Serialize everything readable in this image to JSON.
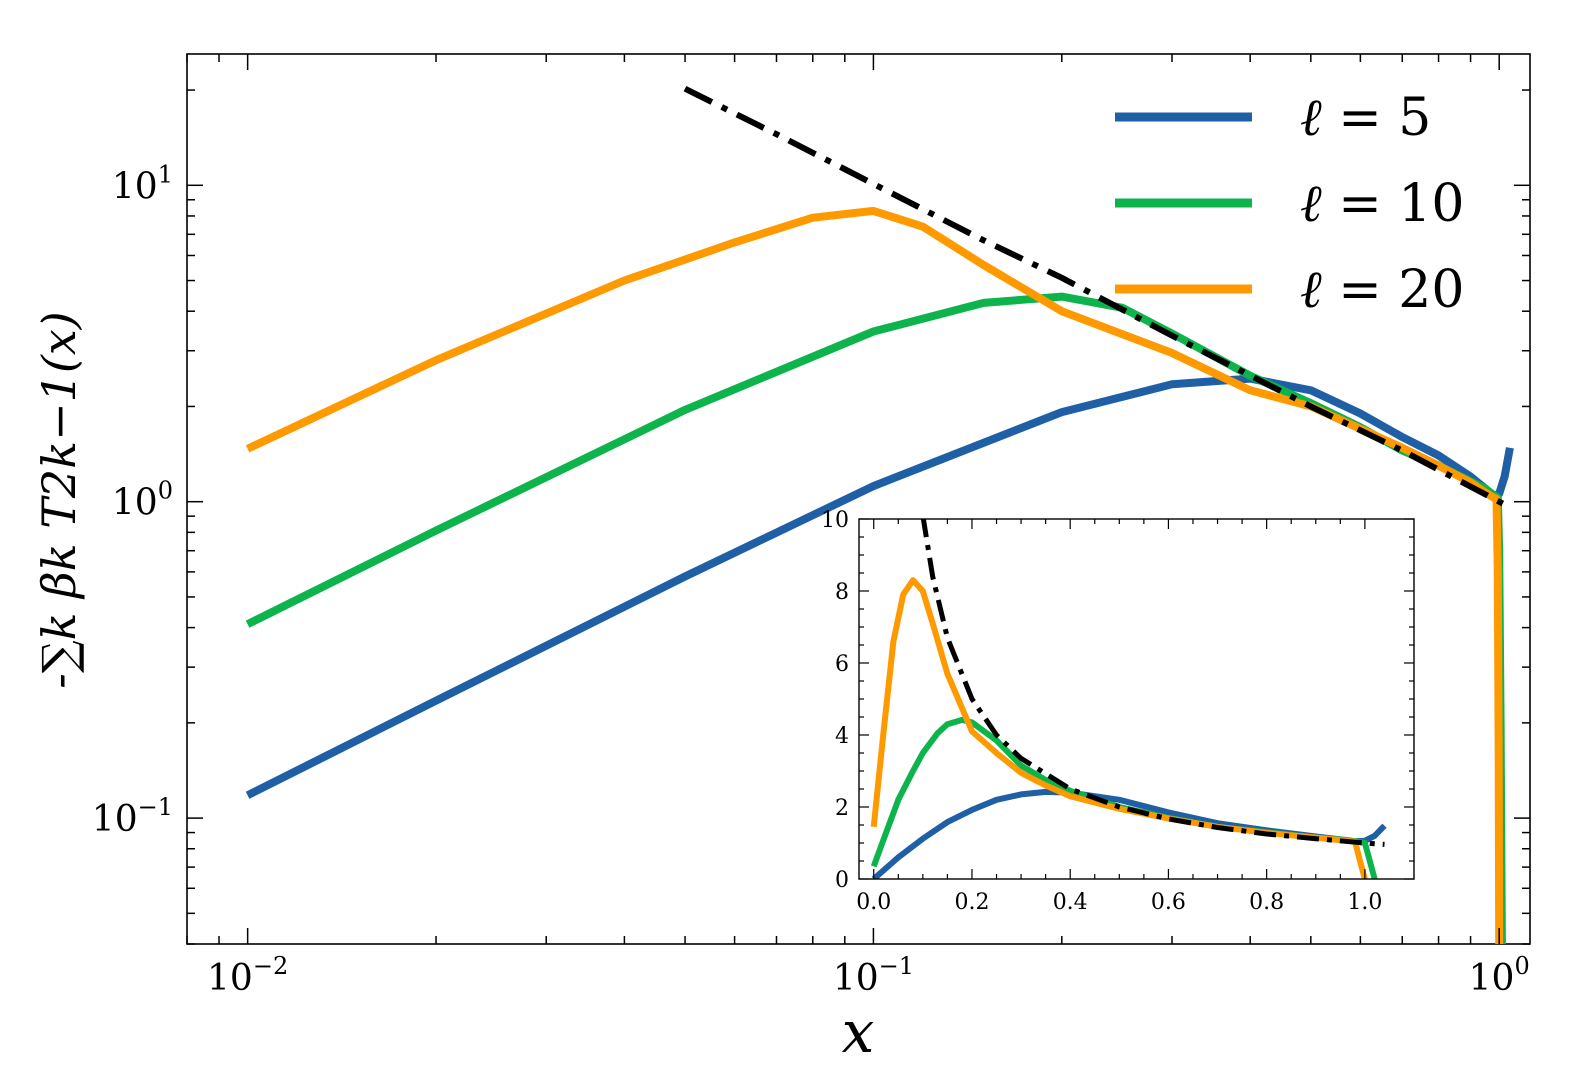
{
  "chart_data": [
    {
      "id": "main",
      "type": "line",
      "title": "",
      "xlabel": "x",
      "ylabel": "-∑k βk T2k−1(x)",
      "xscale": "log",
      "yscale": "log",
      "xlim": [
        0.008,
        1.12
      ],
      "ylim": [
        0.04,
        26
      ],
      "xticks": [
        {
          "value": 0.01,
          "base": "10",
          "exp": "−2"
        },
        {
          "value": 0.1,
          "base": "10",
          "exp": "−1"
        },
        {
          "value": 1,
          "base": "10",
          "exp": "0"
        }
      ],
      "yticks": [
        {
          "value": 0.1,
          "base": "10",
          "exp": "−1"
        },
        {
          "value": 1,
          "base": "10",
          "exp": "0"
        },
        {
          "value": 10,
          "base": "10",
          "exp": "1"
        }
      ],
      "legend": {
        "position": "top-right",
        "entries": [
          {
            "prefix": "ℓ",
            "text": " = 5",
            "color": "#1f5fa6"
          },
          {
            "prefix": "ℓ",
            "text": " = 10",
            "color": "#0db44c"
          },
          {
            "prefix": "ℓ",
            "text": " = 20",
            "color": "#ff9900"
          }
        ]
      },
      "series": [
        {
          "key": "l5",
          "color": "#1f5fa6",
          "style": "solid",
          "x": [
            0.01,
            0.02,
            0.05,
            0.1,
            0.2,
            0.3,
            0.4,
            0.5,
            0.6,
            0.7,
            0.8,
            0.9,
            0.95,
            0.98,
            1.0,
            1.02,
            1.04
          ],
          "y": [
            0.118,
            0.235,
            0.58,
            1.12,
            1.92,
            2.35,
            2.45,
            2.25,
            1.9,
            1.6,
            1.4,
            1.2,
            1.1,
            1.04,
            1.06,
            1.2,
            1.48
          ]
        },
        {
          "key": "l10",
          "color": "#0db44c",
          "style": "solid",
          "x": [
            0.01,
            0.02,
            0.05,
            0.1,
            0.15,
            0.2,
            0.25,
            0.3,
            0.4,
            0.5,
            0.6,
            0.7,
            0.8,
            0.9,
            0.95,
            0.98,
            0.995,
            1.0,
            1.005,
            1.01
          ],
          "y": [
            0.41,
            0.81,
            1.95,
            3.45,
            4.25,
            4.45,
            4.1,
            3.4,
            2.5,
            2.05,
            1.72,
            1.45,
            1.3,
            1.16,
            1.1,
            1.05,
            1.03,
            0.7,
            0.2,
            0.04
          ]
        },
        {
          "key": "l20",
          "color": "#ff9900",
          "style": "solid",
          "x": [
            0.01,
            0.02,
            0.04,
            0.06,
            0.08,
            0.1,
            0.12,
            0.15,
            0.2,
            0.3,
            0.4,
            0.5,
            0.6,
            0.7,
            0.8,
            0.9,
            0.95,
            0.98,
            0.99,
            0.995,
            0.998,
            1.0
          ],
          "y": [
            1.47,
            2.8,
            5.0,
            6.6,
            7.9,
            8.3,
            7.4,
            5.6,
            4.0,
            2.95,
            2.25,
            2.0,
            1.7,
            1.48,
            1.3,
            1.15,
            1.07,
            1.03,
            1.02,
            0.6,
            0.15,
            0.04
          ]
        },
        {
          "key": "asym",
          "color": "#000000",
          "style": "dashdot",
          "x": [
            0.05,
            0.07,
            0.1,
            0.12,
            0.15,
            0.2,
            0.3,
            0.5,
            0.7,
            1.0,
            1.04
          ],
          "y": [
            20.2,
            14.5,
            10.1,
            8.4,
            6.7,
            5.1,
            3.35,
            2.0,
            1.45,
            1.0,
            0.96
          ]
        }
      ]
    },
    {
      "id": "inset",
      "type": "line",
      "title": "",
      "xlabel": "",
      "ylabel": "",
      "xscale": "linear",
      "yscale": "linear",
      "xlim": [
        -0.03,
        1.1
      ],
      "ylim": [
        0,
        10
      ],
      "xticks": [
        0,
        0.2,
        0.4,
        0.6,
        0.8,
        1.0
      ],
      "xtick_labels": [
        "0.0",
        "0.2",
        "0.4",
        "0.6",
        "0.8",
        "1.0"
      ],
      "yticks": [
        0,
        2,
        4,
        6,
        8,
        10
      ],
      "ytick_labels": [
        "0",
        "2",
        "4",
        "6",
        "8",
        "10"
      ],
      "series": [
        {
          "key": "l5",
          "color": "#1f5fa6",
          "style": "solid",
          "x": [
            0.0,
            0.05,
            0.1,
            0.15,
            0.2,
            0.25,
            0.3,
            0.35,
            0.4,
            0.5,
            0.6,
            0.7,
            0.8,
            0.9,
            0.95,
            0.98,
            1.0,
            1.02,
            1.04
          ],
          "y": [
            0.0,
            0.6,
            1.12,
            1.58,
            1.92,
            2.2,
            2.35,
            2.42,
            2.4,
            2.2,
            1.85,
            1.55,
            1.35,
            1.18,
            1.1,
            1.05,
            1.06,
            1.2,
            1.48
          ]
        },
        {
          "key": "l10",
          "color": "#0db44c",
          "style": "solid",
          "x": [
            0.0,
            0.02,
            0.05,
            0.08,
            0.1,
            0.13,
            0.15,
            0.18,
            0.2,
            0.25,
            0.3,
            0.35,
            0.4,
            0.5,
            0.6,
            0.7,
            0.8,
            0.9,
            0.95,
            0.98,
            1.0,
            1.01,
            1.02
          ],
          "y": [
            0.35,
            1.1,
            2.2,
            3.0,
            3.5,
            4.05,
            4.3,
            4.42,
            4.35,
            3.85,
            3.15,
            2.75,
            2.45,
            2.0,
            1.7,
            1.45,
            1.3,
            1.15,
            1.1,
            1.05,
            1.0,
            0.5,
            0.0
          ]
        },
        {
          "key": "l20",
          "color": "#ff9900",
          "style": "solid",
          "x": [
            0.0,
            0.02,
            0.04,
            0.06,
            0.08,
            0.1,
            0.12,
            0.15,
            0.2,
            0.25,
            0.3,
            0.35,
            0.4,
            0.5,
            0.6,
            0.7,
            0.8,
            0.9,
            0.95,
            0.97,
            0.98,
            0.99,
            1.0
          ],
          "y": [
            1.45,
            4.1,
            6.6,
            7.9,
            8.3,
            8.0,
            7.1,
            5.7,
            4.1,
            3.5,
            2.95,
            2.6,
            2.3,
            1.95,
            1.68,
            1.45,
            1.28,
            1.15,
            1.08,
            1.05,
            1.04,
            0.5,
            0.0
          ]
        },
        {
          "key": "asym",
          "color": "#000000",
          "style": "dashdot",
          "x": [
            0.1,
            0.12,
            0.15,
            0.2,
            0.25,
            0.3,
            0.4,
            0.5,
            0.6,
            0.7,
            0.8,
            0.9,
            1.0,
            1.04
          ],
          "y": [
            10.1,
            8.4,
            6.7,
            5.0,
            4.0,
            3.35,
            2.5,
            2.0,
            1.67,
            1.43,
            1.25,
            1.12,
            1.0,
            0.96
          ]
        }
      ]
    }
  ]
}
